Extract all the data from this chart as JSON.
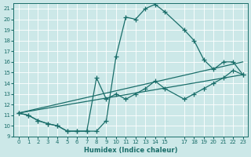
{
  "xlabel": "Humidex (Indice chaleur)",
  "xlim": [
    -0.5,
    23.5
  ],
  "ylim": [
    9,
    21.5
  ],
  "yticks": [
    9,
    10,
    11,
    12,
    13,
    14,
    15,
    16,
    17,
    18,
    19,
    20,
    21
  ],
  "xticks": [
    0,
    1,
    2,
    3,
    4,
    5,
    6,
    7,
    8,
    9,
    10,
    11,
    12,
    13,
    14,
    15,
    17,
    18,
    19,
    20,
    21,
    22,
    23
  ],
  "bg_color": "#cce8e8",
  "line_color": "#1a6e6a",
  "curve_high_x": [
    0,
    1,
    2,
    3,
    4,
    5,
    6,
    7,
    8,
    9,
    10,
    11,
    12,
    13,
    14,
    15,
    17,
    18,
    19,
    20,
    21,
    22,
    23
  ],
  "curve_high_y": [
    11.2,
    11.0,
    10.5,
    10.2,
    10.0,
    9.5,
    9.5,
    9.5,
    9.5,
    10.5,
    16.5,
    20.2,
    20.0,
    21.0,
    21.4,
    20.7,
    19.0,
    18.0,
    16.2,
    15.3,
    16.0,
    16.0,
    14.8
  ],
  "curve_low_x": [
    0,
    1,
    2,
    3,
    4,
    5,
    6,
    7,
    8,
    9,
    10,
    11,
    12,
    13,
    14,
    15,
    17,
    18,
    19,
    20,
    21,
    22,
    23
  ],
  "curve_low_y": [
    11.2,
    11.0,
    10.5,
    10.2,
    10.0,
    9.5,
    9.5,
    9.5,
    14.5,
    12.5,
    13.0,
    12.5,
    13.0,
    13.5,
    14.2,
    13.5,
    12.5,
    13.0,
    13.5,
    14.0,
    14.5,
    15.2,
    14.8
  ],
  "line1_x": [
    0,
    23
  ],
  "line1_y": [
    11.2,
    16.0
  ],
  "line2_x": [
    0,
    23
  ],
  "line2_y": [
    11.2,
    14.8
  ]
}
